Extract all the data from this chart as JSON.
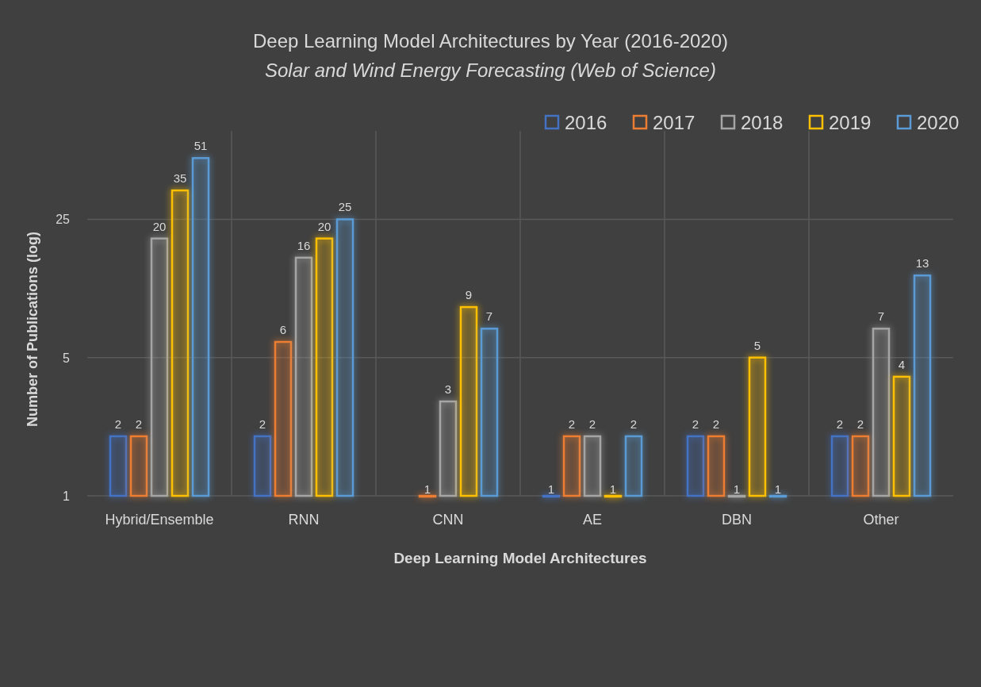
{
  "chart_data": {
    "type": "bar",
    "title": "Deep Learning Model Architectures by Year (2016-2020)",
    "subtitle": "Solar and Wind Energy Forecasting (Web of Science)",
    "xlabel": "Deep Learning Model Architectures",
    "ylabel": "Number of Publications (log)",
    "categories": [
      "Hybrid/Ensemble",
      "RNN",
      "CNN",
      "AE",
      "DBN",
      "Other"
    ],
    "series": [
      {
        "name": "2016",
        "color": "#4472c4",
        "values": [
          2,
          2,
          null,
          1,
          2,
          2
        ]
      },
      {
        "name": "2017",
        "color": "#ed7d31",
        "values": [
          2,
          6,
          1,
          2,
          2,
          2
        ]
      },
      {
        "name": "2018",
        "color": "#a5a5a5",
        "values": [
          20,
          16,
          3,
          2,
          1,
          7
        ]
      },
      {
        "name": "2019",
        "color": "#ffc000",
        "values": [
          35,
          20,
          9,
          1,
          5,
          4
        ]
      },
      {
        "name": "2020",
        "color": "#5b9bd5",
        "values": [
          51,
          25,
          7,
          2,
          1,
          13
        ]
      }
    ],
    "log": "y",
    "ylim": [
      1,
      70
    ],
    "yticks": [
      1,
      5,
      25
    ],
    "grid": true,
    "legend": "top right",
    "data_labels": true
  }
}
